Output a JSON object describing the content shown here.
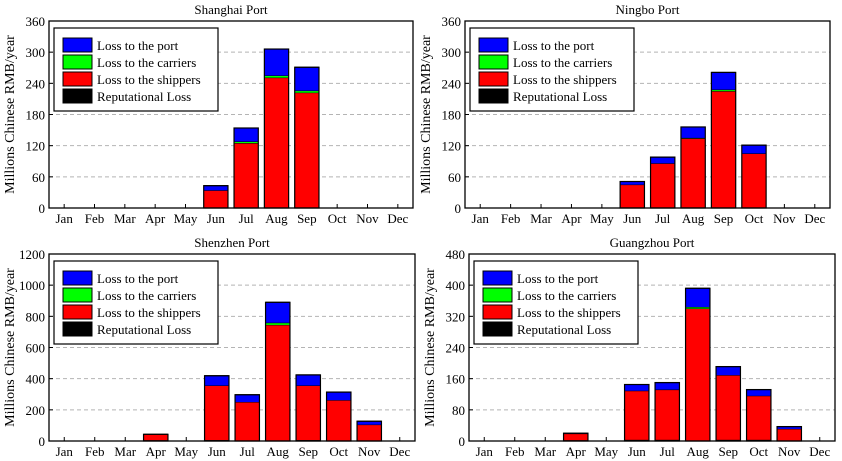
{
  "legend_labels": [
    "Loss to the port",
    "Loss to the carriers",
    "Loss to the shippers",
    "Reputational Loss"
  ],
  "colors": {
    "port": "#0000ff",
    "carriers": "#00ff00",
    "shippers": "#ff0000",
    "reputational": "#000000"
  },
  "chart_data": [
    {
      "type": "bar",
      "stacked": true,
      "title": "Shanghai Port",
      "xlabel": "",
      "ylabel": "Millions Chinese RMB/year",
      "ylim": [
        0,
        360
      ],
      "yticks": [
        0,
        60,
        120,
        180,
        240,
        300,
        360
      ],
      "grid": true,
      "legend_position": "top-left",
      "categories": [
        "Jan",
        "Feb",
        "Mar",
        "Apr",
        "May",
        "Jun",
        "Jul",
        "Aug",
        "Sep",
        "Oct",
        "Nov",
        "Dec"
      ],
      "series": [
        {
          "name": "Reputational Loss",
          "key": "reputational",
          "values": [
            0,
            0,
            0,
            0,
            0,
            0,
            0,
            0,
            0,
            0,
            0,
            0
          ]
        },
        {
          "name": "Loss to the shippers",
          "key": "shippers",
          "values": [
            0,
            0,
            0,
            0,
            0,
            34,
            125,
            251,
            222,
            0,
            0,
            0
          ]
        },
        {
          "name": "Loss to the carriers",
          "key": "carriers",
          "values": [
            0,
            0,
            0,
            0,
            0,
            0,
            3,
            4,
            4,
            0,
            0,
            0
          ]
        },
        {
          "name": "Loss to the port",
          "key": "port",
          "values": [
            0,
            0,
            0,
            0,
            0,
            9,
            26,
            51,
            45,
            0,
            0,
            0
          ]
        }
      ]
    },
    {
      "type": "bar",
      "stacked": true,
      "title": "Ningbo Port",
      "xlabel": "",
      "ylabel": "Millions Chinese RMB/year",
      "ylim": [
        0,
        360
      ],
      "yticks": [
        0,
        60,
        120,
        180,
        240,
        300,
        360
      ],
      "grid": true,
      "legend_position": "top-left",
      "categories": [
        "Jan",
        "Feb",
        "Mar",
        "Apr",
        "May",
        "Jun",
        "Jul",
        "Aug",
        "Sep",
        "Oct",
        "Nov",
        "Dec"
      ],
      "series": [
        {
          "name": "Reputational Loss",
          "key": "reputational",
          "values": [
            0,
            0,
            0,
            0,
            0,
            1,
            0,
            1,
            0,
            0,
            0,
            0
          ]
        },
        {
          "name": "Loss to the shippers",
          "key": "shippers",
          "values": [
            0,
            0,
            0,
            0,
            0,
            44,
            86,
            133,
            225,
            105,
            0,
            0
          ]
        },
        {
          "name": "Loss to the carriers",
          "key": "carriers",
          "values": [
            0,
            0,
            0,
            0,
            0,
            0,
            0,
            1,
            3,
            0,
            0,
            0
          ]
        },
        {
          "name": "Loss to the port",
          "key": "port",
          "values": [
            0,
            0,
            0,
            0,
            0,
            6,
            12,
            21,
            33,
            16,
            0,
            0
          ]
        }
      ]
    },
    {
      "type": "bar",
      "stacked": true,
      "title": "Shenzhen Port",
      "xlabel": "",
      "ylabel": "Millions Chinese RMB/year",
      "ylim": [
        0,
        1200
      ],
      "yticks": [
        0,
        200,
        400,
        600,
        800,
        1000,
        1200
      ],
      "grid": true,
      "legend_position": "top-left",
      "categories": [
        "Jan",
        "Feb",
        "Mar",
        "Apr",
        "May",
        "Jun",
        "Jul",
        "Aug",
        "Sep",
        "Oct",
        "Nov",
        "Dec"
      ],
      "series": [
        {
          "name": "Reputational Loss",
          "key": "reputational",
          "values": [
            0,
            0,
            0,
            5,
            0,
            6,
            0,
            0,
            6,
            0,
            0,
            0
          ]
        },
        {
          "name": "Loss to the shippers",
          "key": "shippers",
          "values": [
            0,
            0,
            0,
            38,
            0,
            350,
            250,
            745,
            350,
            262,
            105,
            0
          ]
        },
        {
          "name": "Loss to the carriers",
          "key": "carriers",
          "values": [
            0,
            0,
            0,
            0,
            0,
            0,
            0,
            14,
            0,
            0,
            0,
            0
          ]
        },
        {
          "name": "Loss to the port",
          "key": "port",
          "values": [
            0,
            0,
            0,
            0,
            0,
            63,
            47,
            131,
            68,
            52,
            22,
            0
          ]
        }
      ]
    },
    {
      "type": "bar",
      "stacked": true,
      "title": "Guangzhou Port",
      "xlabel": "",
      "ylabel": "Millions Chinese RMB/year",
      "ylim": [
        0,
        480
      ],
      "yticks": [
        0,
        80,
        160,
        240,
        320,
        400,
        480
      ],
      "grid": true,
      "legend_position": "top-left",
      "categories": [
        "Jan",
        "Feb",
        "Mar",
        "Apr",
        "May",
        "Jun",
        "Jul",
        "Aug",
        "Sep",
        "Oct",
        "Nov",
        "Dec"
      ],
      "series": [
        {
          "name": "Reputational Loss",
          "key": "reputational",
          "values": [
            0,
            0,
            0,
            2,
            0,
            3,
            3,
            1,
            3,
            3,
            1,
            0
          ]
        },
        {
          "name": "Loss to the shippers",
          "key": "shippers",
          "values": [
            0,
            0,
            0,
            17,
            0,
            126,
            129,
            339,
            166,
            113,
            30,
            0
          ]
        },
        {
          "name": "Loss to the carriers",
          "key": "carriers",
          "values": [
            0,
            0,
            0,
            0,
            0,
            0,
            0,
            4,
            0,
            0,
            0,
            0
          ]
        },
        {
          "name": "Loss to the port",
          "key": "port",
          "values": [
            0,
            0,
            0,
            1,
            0,
            16,
            18,
            48,
            22,
            16,
            6,
            0
          ]
        }
      ]
    }
  ]
}
